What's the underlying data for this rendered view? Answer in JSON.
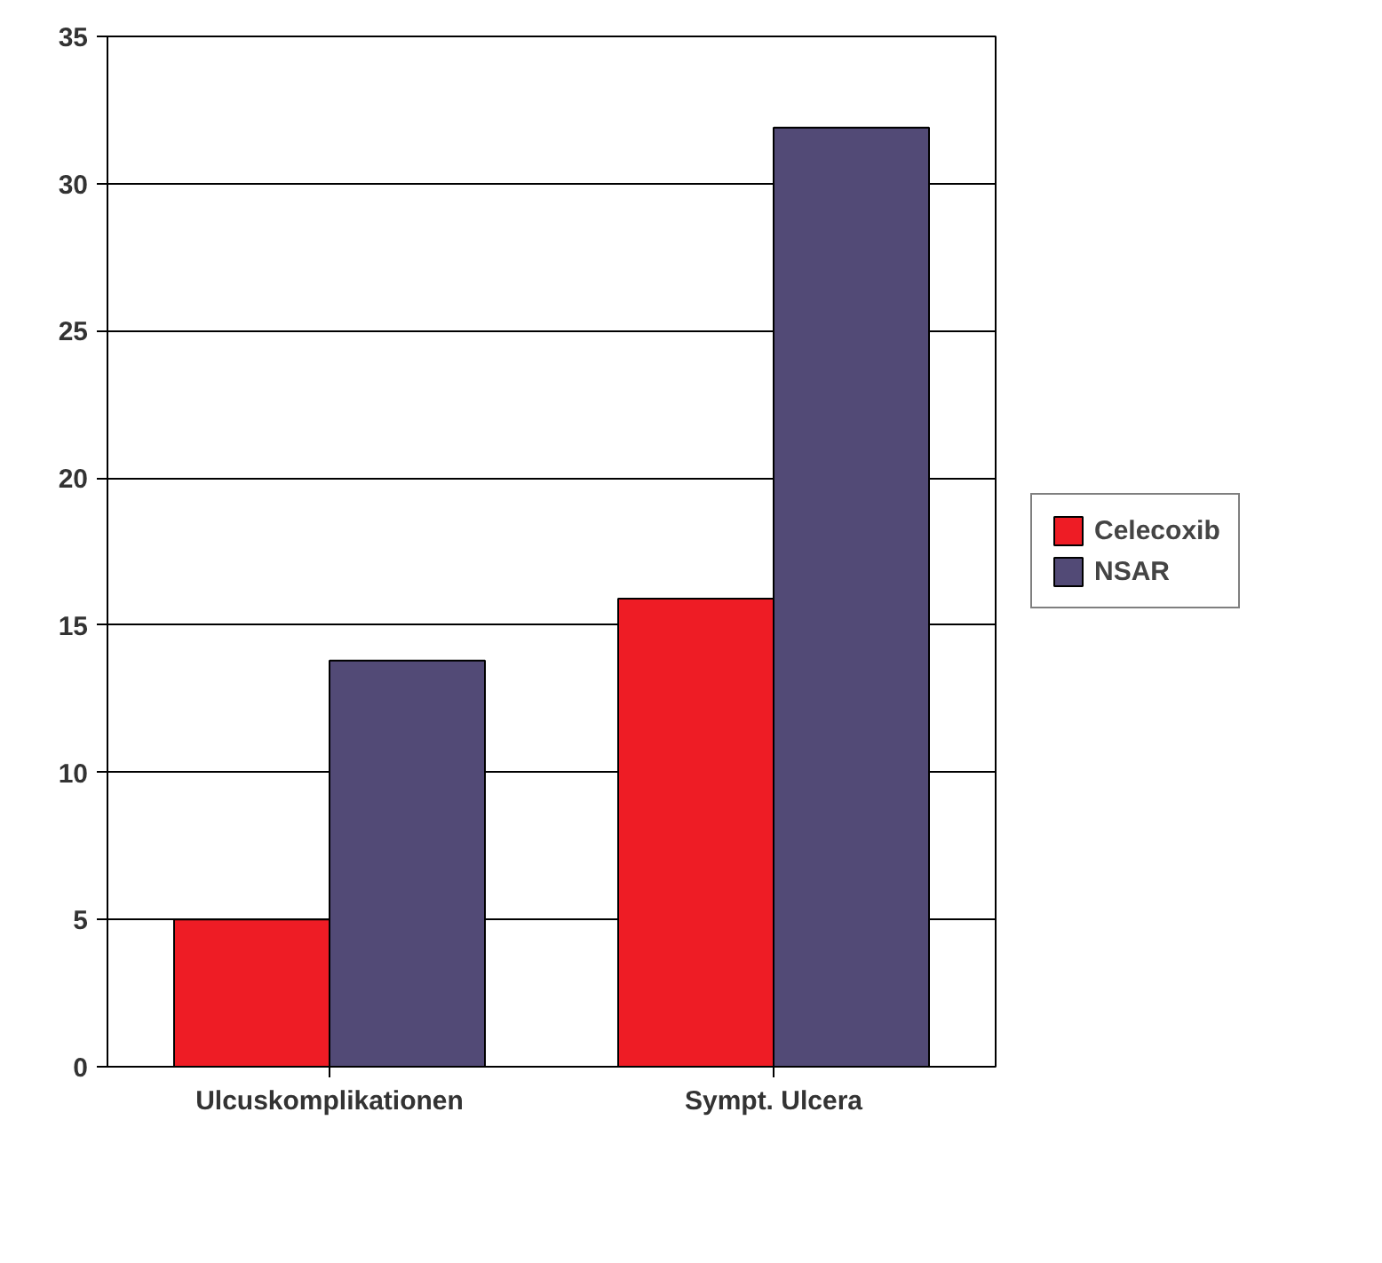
{
  "chart_data": {
    "type": "bar",
    "categories": [
      "Ulcuskomplikationen",
      "Sympt. Ulcera"
    ],
    "series": [
      {
        "name": "Celecoxib",
        "color": "#ee1c25",
        "values": [
          5,
          15.9
        ]
      },
      {
        "name": "NSAR",
        "color": "#524a76",
        "values": [
          13.8,
          31.9
        ]
      }
    ],
    "ylim": [
      0,
      35
    ],
    "yticks": [
      0,
      5,
      10,
      15,
      20,
      25,
      30,
      35
    ],
    "grid": "y",
    "legend": "right"
  }
}
